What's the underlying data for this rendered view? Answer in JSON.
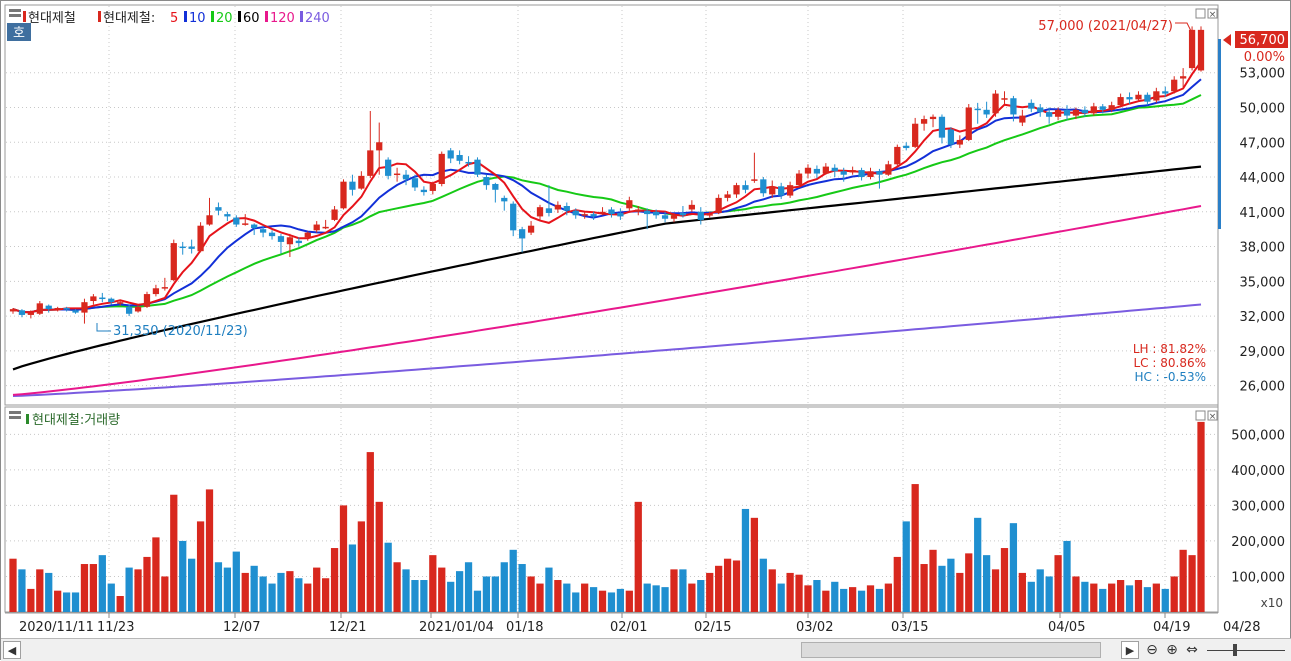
{
  "stock": "현대제철",
  "legend": {
    "prefix": "현대제철",
    "ma_prefix": "현대제철:",
    "items": [
      {
        "label": "5",
        "color": "#e6131a"
      },
      {
        "label": "10",
        "color": "#1230d8"
      },
      {
        "label": "20",
        "color": "#16c916"
      },
      {
        "label": "60",
        "color": "#000000"
      },
      {
        "label": "120",
        "color": "#e8188c"
      },
      {
        "label": "240",
        "color": "#7a5ce0"
      }
    ],
    "badge": "호"
  },
  "volume_legend": "현대제철:거래량",
  "annotations": {
    "high_label": "57,000 (2021/04/27)",
    "low_label": "31,350 (2020/11/23)",
    "current_price": "56,700",
    "current_change": "0.00%",
    "lh": "LH : 81.82%",
    "lc": "LC : 80.86%",
    "hc": "HC : -0.53%"
  },
  "price_axis": [
    "53,000",
    "50,000",
    "47,000",
    "44,000",
    "41,000",
    "38,000",
    "35,000",
    "32,000",
    "29,000",
    "26,000"
  ],
  "volume_axis": [
    "500,000",
    "400,000",
    "300,000",
    "200,000",
    "100,000"
  ],
  "volume_unit": "x10",
  "date_axis": [
    "2020/11/11",
    "11/23",
    "12/07",
    "12/21",
    "2021/01/04",
    "01/18",
    "02/01",
    "02/15",
    "03/02",
    "03/15",
    "04/05",
    "04/19",
    "04/28"
  ],
  "colors": {
    "up": "#d8281e",
    "down": "#1f8fd0",
    "ma5": "#e6131a",
    "ma10": "#1230d8",
    "ma20": "#16c916",
    "ma60": "#000000",
    "ma120": "#e8188c",
    "ma240": "#7a5ce0"
  },
  "chart_data": {
    "type": "candlestick",
    "price_ylim": [
      24500,
      58500
    ],
    "volume_ylim": [
      0,
      560000
    ],
    "candles": [
      {
        "o": 32400,
        "c": 32600,
        "h": 32700,
        "l": 32200,
        "v": 150000
      },
      {
        "o": 32500,
        "c": 32100,
        "h": 32600,
        "l": 31900,
        "v": 120000
      },
      {
        "o": 32100,
        "c": 32300,
        "h": 32500,
        "l": 31800,
        "v": 65000
      },
      {
        "o": 32200,
        "c": 33100,
        "h": 33300,
        "l": 32100,
        "v": 120000
      },
      {
        "o": 32900,
        "c": 32600,
        "h": 33000,
        "l": 32300,
        "v": 110000
      },
      {
        "o": 32600,
        "c": 32700,
        "h": 32800,
        "l": 32400,
        "v": 60000
      },
      {
        "o": 32700,
        "c": 32600,
        "h": 32800,
        "l": 32400,
        "v": 55000
      },
      {
        "o": 32500,
        "c": 32300,
        "h": 32600,
        "l": 32200,
        "v": 55000
      },
      {
        "o": 32300,
        "c": 33200,
        "h": 33500,
        "l": 31350,
        "v": 135000
      },
      {
        "o": 33300,
        "c": 33700,
        "h": 33900,
        "l": 33000,
        "v": 135000
      },
      {
        "o": 33600,
        "c": 33500,
        "h": 34000,
        "l": 33200,
        "v": 160000
      },
      {
        "o": 33500,
        "c": 33200,
        "h": 33600,
        "l": 33000,
        "v": 80000
      },
      {
        "o": 33100,
        "c": 33200,
        "h": 33400,
        "l": 32900,
        "v": 45000
      },
      {
        "o": 32800,
        "c": 32200,
        "h": 33000,
        "l": 32000,
        "v": 125000
      },
      {
        "o": 32400,
        "c": 32800,
        "h": 33000,
        "l": 32300,
        "v": 120000
      },
      {
        "o": 32800,
        "c": 33900,
        "h": 34100,
        "l": 32700,
        "v": 155000
      },
      {
        "o": 33900,
        "c": 34400,
        "h": 34700,
        "l": 33700,
        "v": 210000
      },
      {
        "o": 34400,
        "c": 34500,
        "h": 35300,
        "l": 34200,
        "v": 100000
      },
      {
        "o": 35100,
        "c": 38300,
        "h": 38600,
        "l": 35000,
        "v": 330000
      },
      {
        "o": 38000,
        "c": 37900,
        "h": 38400,
        "l": 37300,
        "v": 200000
      },
      {
        "o": 38000,
        "c": 37800,
        "h": 38600,
        "l": 37400,
        "v": 150000
      },
      {
        "o": 37600,
        "c": 39800,
        "h": 40100,
        "l": 37500,
        "v": 255000
      },
      {
        "o": 39900,
        "c": 40700,
        "h": 42200,
        "l": 39800,
        "v": 345000
      },
      {
        "o": 41400,
        "c": 41100,
        "h": 41800,
        "l": 40700,
        "v": 140000
      },
      {
        "o": 40800,
        "c": 40600,
        "h": 41000,
        "l": 40200,
        "v": 125000
      },
      {
        "o": 40500,
        "c": 39900,
        "h": 40700,
        "l": 39700,
        "v": 170000
      },
      {
        "o": 40000,
        "c": 40000,
        "h": 40800,
        "l": 39800,
        "v": 110000
      },
      {
        "o": 39900,
        "c": 39600,
        "h": 40000,
        "l": 39000,
        "v": 130000
      },
      {
        "o": 39500,
        "c": 39200,
        "h": 39800,
        "l": 38800,
        "v": 100000
      },
      {
        "o": 39200,
        "c": 38900,
        "h": 39400,
        "l": 38600,
        "v": 80000
      },
      {
        "o": 38900,
        "c": 38400,
        "h": 39100,
        "l": 37400,
        "v": 110000
      },
      {
        "o": 38200,
        "c": 38800,
        "h": 39100,
        "l": 37100,
        "v": 115000
      },
      {
        "o": 38500,
        "c": 38300,
        "h": 38800,
        "l": 38000,
        "v": 95000
      },
      {
        "o": 38800,
        "c": 39200,
        "h": 39300,
        "l": 38500,
        "v": 80000
      },
      {
        "o": 39400,
        "c": 39900,
        "h": 40200,
        "l": 39200,
        "v": 125000
      },
      {
        "o": 39700,
        "c": 39700,
        "h": 40300,
        "l": 39500,
        "v": 95000
      },
      {
        "o": 40300,
        "c": 41200,
        "h": 41500,
        "l": 40200,
        "v": 180000
      },
      {
        "o": 41300,
        "c": 43600,
        "h": 43800,
        "l": 41200,
        "v": 300000
      },
      {
        "o": 43600,
        "c": 42900,
        "h": 44200,
        "l": 42400,
        "v": 190000
      },
      {
        "o": 43000,
        "c": 44100,
        "h": 44500,
        "l": 42900,
        "v": 255000
      },
      {
        "o": 44100,
        "c": 46300,
        "h": 49700,
        "l": 43900,
        "v": 450000
      },
      {
        "o": 46300,
        "c": 47000,
        "h": 48700,
        "l": 44200,
        "v": 310000
      },
      {
        "o": 45500,
        "c": 44100,
        "h": 45700,
        "l": 43800,
        "v": 195000
      },
      {
        "o": 44300,
        "c": 44300,
        "h": 44800,
        "l": 43600,
        "v": 140000
      },
      {
        "o": 44200,
        "c": 43800,
        "h": 44600,
        "l": 43300,
        "v": 120000
      },
      {
        "o": 43900,
        "c": 43100,
        "h": 44200,
        "l": 42800,
        "v": 90000
      },
      {
        "o": 42900,
        "c": 42700,
        "h": 43200,
        "l": 42400,
        "v": 90000
      },
      {
        "o": 42800,
        "c": 43400,
        "h": 43600,
        "l": 42500,
        "v": 160000
      },
      {
        "o": 43400,
        "c": 46000,
        "h": 46200,
        "l": 43200,
        "v": 125000
      },
      {
        "o": 46300,
        "c": 45600,
        "h": 46500,
        "l": 45200,
        "v": 85000
      },
      {
        "o": 45900,
        "c": 45400,
        "h": 46300,
        "l": 45100,
        "v": 115000
      },
      {
        "o": 45300,
        "c": 45200,
        "h": 45800,
        "l": 44900,
        "v": 140000
      },
      {
        "o": 45500,
        "c": 44200,
        "h": 45700,
        "l": 44000,
        "v": 60000
      },
      {
        "o": 44000,
        "c": 43300,
        "h": 44200,
        "l": 42900,
        "v": 100000
      },
      {
        "o": 43400,
        "c": 42900,
        "h": 43500,
        "l": 41800,
        "v": 100000
      },
      {
        "o": 42200,
        "c": 41900,
        "h": 42400,
        "l": 41100,
        "v": 140000
      },
      {
        "o": 41700,
        "c": 39400,
        "h": 41900,
        "l": 38900,
        "v": 175000
      },
      {
        "o": 39500,
        "c": 38700,
        "h": 39700,
        "l": 37500,
        "v": 135000
      },
      {
        "o": 39200,
        "c": 39800,
        "h": 40200,
        "l": 39000,
        "v": 100000
      },
      {
        "o": 40600,
        "c": 41400,
        "h": 41600,
        "l": 40300,
        "v": 80000
      },
      {
        "o": 41300,
        "c": 40900,
        "h": 43300,
        "l": 40600,
        "v": 125000
      },
      {
        "o": 41200,
        "c": 41600,
        "h": 41900,
        "l": 40900,
        "v": 90000
      },
      {
        "o": 41500,
        "c": 41100,
        "h": 41800,
        "l": 40700,
        "v": 80000
      },
      {
        "o": 41100,
        "c": 40700,
        "h": 41300,
        "l": 40400,
        "v": 55000
      },
      {
        "o": 40700,
        "c": 40800,
        "h": 41000,
        "l": 40400,
        "v": 80000
      },
      {
        "o": 40800,
        "c": 40600,
        "h": 41000,
        "l": 40300,
        "v": 70000
      },
      {
        "o": 40900,
        "c": 41000,
        "h": 41400,
        "l": 40700,
        "v": 60000
      },
      {
        "o": 41200,
        "c": 40800,
        "h": 41400,
        "l": 40500,
        "v": 55000
      },
      {
        "o": 40900,
        "c": 40600,
        "h": 41300,
        "l": 40300,
        "v": 65000
      },
      {
        "o": 41300,
        "c": 42000,
        "h": 42300,
        "l": 41100,
        "v": 60000
      },
      {
        "o": 41000,
        "c": 41200,
        "h": 41500,
        "l": 40700,
        "v": 310000
      },
      {
        "o": 41100,
        "c": 40800,
        "h": 41300,
        "l": 39500,
        "v": 80000
      },
      {
        "o": 41000,
        "c": 40700,
        "h": 41200,
        "l": 40400,
        "v": 75000
      },
      {
        "o": 40700,
        "c": 40400,
        "h": 41000,
        "l": 40100,
        "v": 70000
      },
      {
        "o": 40400,
        "c": 40700,
        "h": 40900,
        "l": 40100,
        "v": 120000
      },
      {
        "o": 40900,
        "c": 40700,
        "h": 41500,
        "l": 40500,
        "v": 120000
      },
      {
        "o": 41200,
        "c": 41600,
        "h": 42000,
        "l": 41000,
        "v": 80000
      },
      {
        "o": 41000,
        "c": 40300,
        "h": 41400,
        "l": 39900,
        "v": 90000
      },
      {
        "o": 40700,
        "c": 40800,
        "h": 41000,
        "l": 40500,
        "v": 110000
      },
      {
        "o": 40900,
        "c": 42200,
        "h": 42500,
        "l": 40800,
        "v": 130000
      },
      {
        "o": 42200,
        "c": 42500,
        "h": 42800,
        "l": 41900,
        "v": 150000
      },
      {
        "o": 42500,
        "c": 43300,
        "h": 43500,
        "l": 42200,
        "v": 145000
      },
      {
        "o": 43300,
        "c": 42900,
        "h": 43700,
        "l": 42600,
        "v": 290000
      },
      {
        "o": 43800,
        "c": 43800,
        "h": 46100,
        "l": 43500,
        "v": 265000
      },
      {
        "o": 43800,
        "c": 42600,
        "h": 44000,
        "l": 42300,
        "v": 150000
      },
      {
        "o": 42500,
        "c": 43200,
        "h": 43700,
        "l": 42200,
        "v": 120000
      },
      {
        "o": 43200,
        "c": 42400,
        "h": 43500,
        "l": 42100,
        "v": 80000
      },
      {
        "o": 42400,
        "c": 43300,
        "h": 43600,
        "l": 42200,
        "v": 110000
      },
      {
        "o": 43300,
        "c": 44300,
        "h": 44600,
        "l": 43100,
        "v": 105000
      },
      {
        "o": 44300,
        "c": 44800,
        "h": 45100,
        "l": 43900,
        "v": 75000
      },
      {
        "o": 44700,
        "c": 44300,
        "h": 45000,
        "l": 43900,
        "v": 90000
      },
      {
        "o": 44300,
        "c": 44900,
        "h": 45200,
        "l": 44200,
        "v": 60000
      },
      {
        "o": 44800,
        "c": 44500,
        "h": 45100,
        "l": 44000,
        "v": 85000
      },
      {
        "o": 44500,
        "c": 44200,
        "h": 44800,
        "l": 43600,
        "v": 65000
      },
      {
        "o": 44400,
        "c": 44600,
        "h": 44900,
        "l": 44200,
        "v": 70000
      },
      {
        "o": 44600,
        "c": 44000,
        "h": 44800,
        "l": 43700,
        "v": 60000
      },
      {
        "o": 44000,
        "c": 44500,
        "h": 44800,
        "l": 43800,
        "v": 75000
      },
      {
        "o": 44500,
        "c": 44200,
        "h": 44700,
        "l": 43000,
        "v": 65000
      },
      {
        "o": 44200,
        "c": 45100,
        "h": 45400,
        "l": 44100,
        "v": 80000
      },
      {
        "o": 45100,
        "c": 46600,
        "h": 46800,
        "l": 44900,
        "v": 155000
      },
      {
        "o": 46700,
        "c": 46500,
        "h": 47000,
        "l": 46300,
        "v": 255000
      },
      {
        "o": 46600,
        "c": 48600,
        "h": 49100,
        "l": 46500,
        "v": 360000
      },
      {
        "o": 48600,
        "c": 49000,
        "h": 49300,
        "l": 48000,
        "v": 135000
      },
      {
        "o": 49000,
        "c": 49200,
        "h": 49400,
        "l": 48300,
        "v": 175000
      },
      {
        "o": 49200,
        "c": 47400,
        "h": 49400,
        "l": 46900,
        "v": 130000
      },
      {
        "o": 48100,
        "c": 46800,
        "h": 48300,
        "l": 46500,
        "v": 150000
      },
      {
        "o": 46800,
        "c": 47200,
        "h": 47600,
        "l": 46500,
        "v": 110000
      },
      {
        "o": 47200,
        "c": 50000,
        "h": 50300,
        "l": 47100,
        "v": 165000
      },
      {
        "o": 49900,
        "c": 49800,
        "h": 50400,
        "l": 48600,
        "v": 265000
      },
      {
        "o": 49800,
        "c": 49400,
        "h": 50500,
        "l": 49100,
        "v": 160000
      },
      {
        "o": 49500,
        "c": 51200,
        "h": 51500,
        "l": 49200,
        "v": 120000
      },
      {
        "o": 50800,
        "c": 50800,
        "h": 51400,
        "l": 50300,
        "v": 180000
      },
      {
        "o": 50800,
        "c": 49400,
        "h": 51000,
        "l": 48800,
        "v": 250000
      },
      {
        "o": 48700,
        "c": 49300,
        "h": 49800,
        "l": 48400,
        "v": 110000
      },
      {
        "o": 50400,
        "c": 49900,
        "h": 50700,
        "l": 49600,
        "v": 85000
      },
      {
        "o": 50000,
        "c": 49600,
        "h": 50300,
        "l": 49200,
        "v": 120000
      },
      {
        "o": 49600,
        "c": 49200,
        "h": 50000,
        "l": 48600,
        "v": 100000
      },
      {
        "o": 49200,
        "c": 49800,
        "h": 50000,
        "l": 48900,
        "v": 160000
      },
      {
        "o": 49800,
        "c": 49300,
        "h": 50200,
        "l": 48900,
        "v": 200000
      },
      {
        "o": 49300,
        "c": 49800,
        "h": 50000,
        "l": 49000,
        "v": 100000
      },
      {
        "o": 49800,
        "c": 49500,
        "h": 50100,
        "l": 49200,
        "v": 85000
      },
      {
        "o": 49500,
        "c": 50100,
        "h": 50400,
        "l": 49300,
        "v": 80000
      },
      {
        "o": 50100,
        "c": 49800,
        "h": 50300,
        "l": 49500,
        "v": 65000
      },
      {
        "o": 49800,
        "c": 50200,
        "h": 50500,
        "l": 49600,
        "v": 80000
      },
      {
        "o": 50200,
        "c": 50900,
        "h": 51200,
        "l": 50000,
        "v": 90000
      },
      {
        "o": 50900,
        "c": 50700,
        "h": 51300,
        "l": 50300,
        "v": 75000
      },
      {
        "o": 50700,
        "c": 51100,
        "h": 51400,
        "l": 50500,
        "v": 90000
      },
      {
        "o": 51100,
        "c": 50500,
        "h": 51300,
        "l": 50200,
        "v": 70000
      },
      {
        "o": 50600,
        "c": 51400,
        "h": 51700,
        "l": 50400,
        "v": 80000
      },
      {
        "o": 51400,
        "c": 51200,
        "h": 51800,
        "l": 50900,
        "v": 65000
      },
      {
        "o": 51400,
        "c": 52400,
        "h": 52700,
        "l": 51200,
        "v": 100000
      },
      {
        "o": 52500,
        "c": 52700,
        "h": 53400,
        "l": 51700,
        "v": 175000
      },
      {
        "o": 53400,
        "c": 56700,
        "h": 57000,
        "l": 53200,
        "v": 160000
      },
      {
        "o": 53200,
        "c": 56700,
        "h": 57000,
        "l": 53100,
        "v": 535000
      }
    ],
    "ma": {
      "5": {
        "start": 31900,
        "end": 53300,
        "shape": "follow"
      },
      "10": {
        "start": 30900,
        "end": 51600
      },
      "20": {
        "start": 30600,
        "end": 50200
      },
      "60": {
        "start": 27400,
        "end": 44900
      },
      "120": {
        "start": 25200,
        "end": 41500
      },
      "240": {
        "start": 25100,
        "end": 33000
      }
    }
  }
}
